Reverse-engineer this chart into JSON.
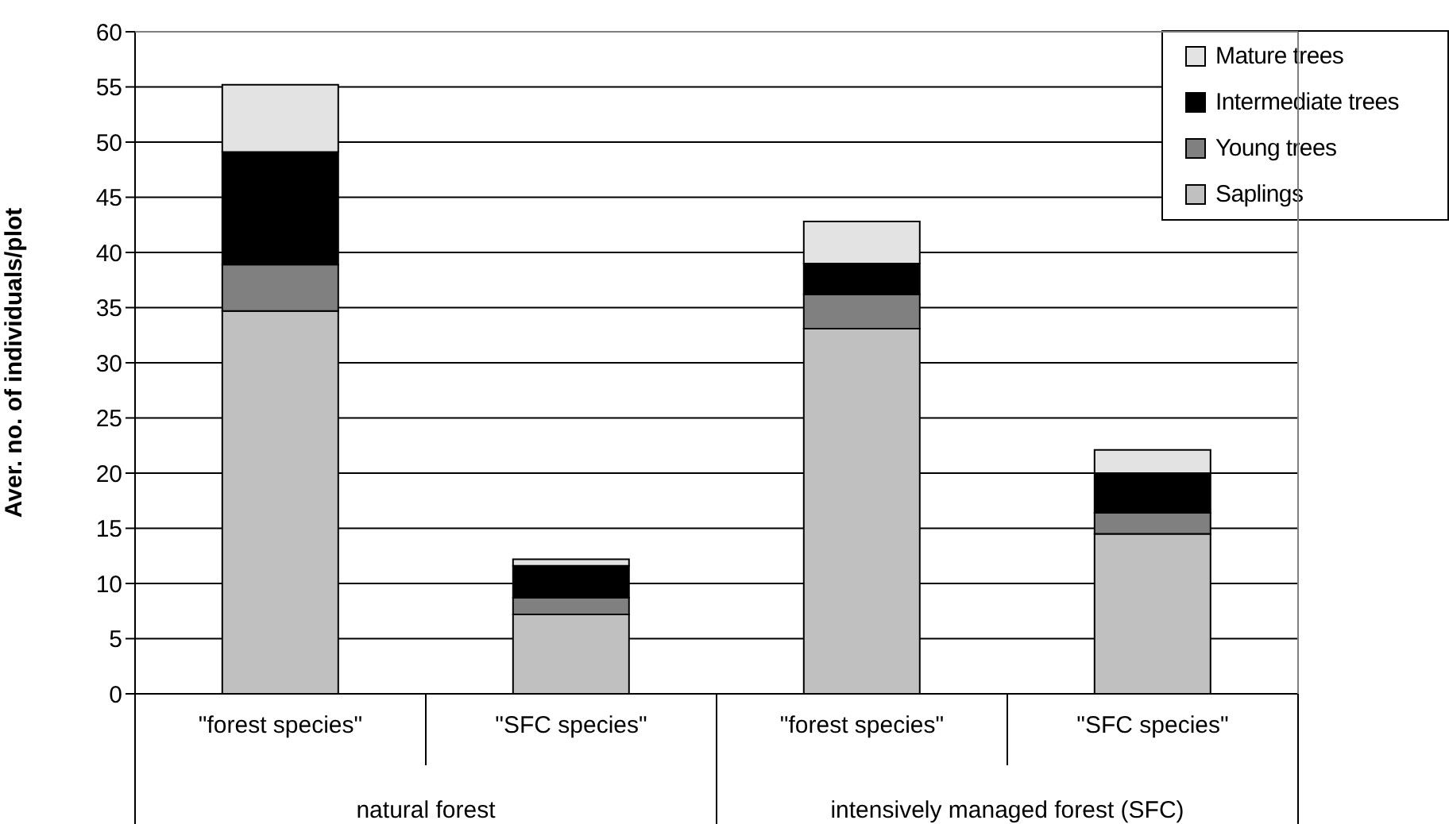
{
  "chart_data": {
    "type": "bar",
    "stacked": true,
    "ylabel": "Aver. no. of individuals/plot",
    "categories": [
      "\"forest species\"",
      "\"SFC species\"",
      "\"forest species\"",
      "\"SFC species\""
    ],
    "series": [
      {
        "name": "Saplings",
        "color": "#c0c0c0",
        "values": [
          34.7,
          7.2,
          33.1,
          14.5
        ]
      },
      {
        "name": "Young trees",
        "color": "#808080",
        "values": [
          4.2,
          1.5,
          3.1,
          1.9
        ]
      },
      {
        "name": "Intermediate trees",
        "color": "#000000",
        "values": [
          10.2,
          2.9,
          2.8,
          3.6
        ]
      },
      {
        "name": "Mature trees",
        "color": "#e3e3e3",
        "values": [
          6.1,
          0.6,
          3.8,
          2.1
        ]
      }
    ],
    "ylim": [
      0,
      60
    ],
    "yticks": [
      0,
      5,
      10,
      15,
      20,
      25,
      30,
      35,
      40,
      45,
      50,
      55,
      60
    ],
    "grid": "y",
    "legend": "top right",
    "annotations": [
      "natural forest",
      "intensively managed forest (SFC)"
    ]
  }
}
